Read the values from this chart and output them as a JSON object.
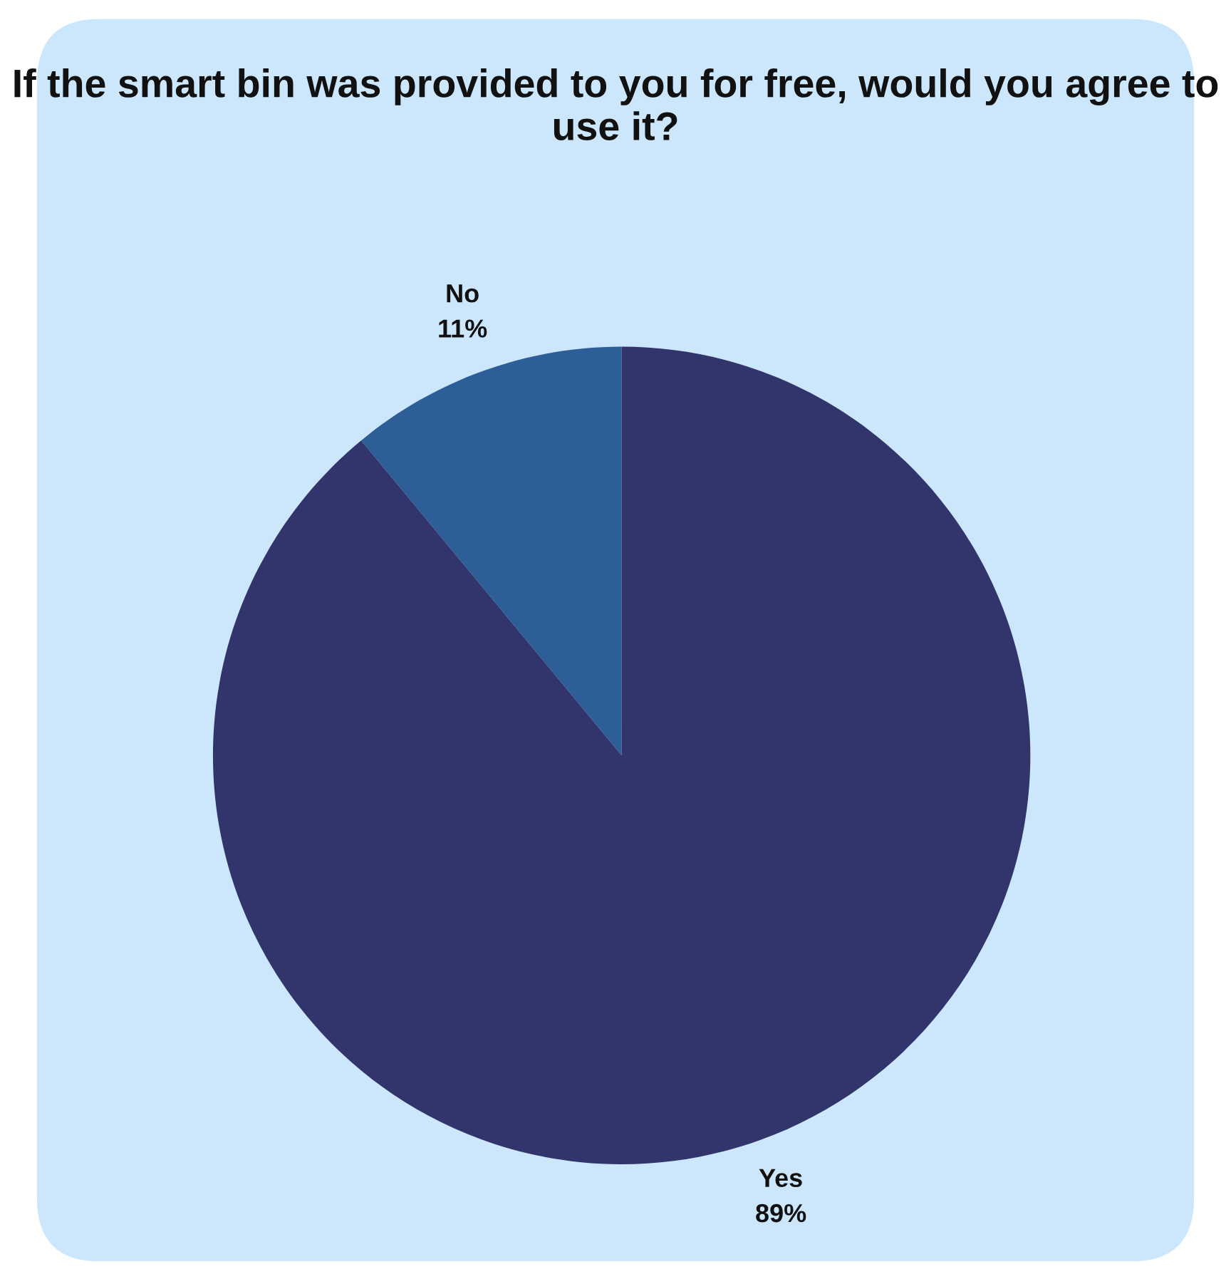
{
  "chart_data": {
    "type": "pie",
    "title": "If the smart bin was provided to you for free, would you agree to use it?",
    "categories": [
      "No",
      "Yes"
    ],
    "values": [
      11,
      89
    ],
    "colors": [
      "#2e5e97",
      "#31356b"
    ],
    "value_labels": [
      "11%",
      "89%"
    ]
  }
}
